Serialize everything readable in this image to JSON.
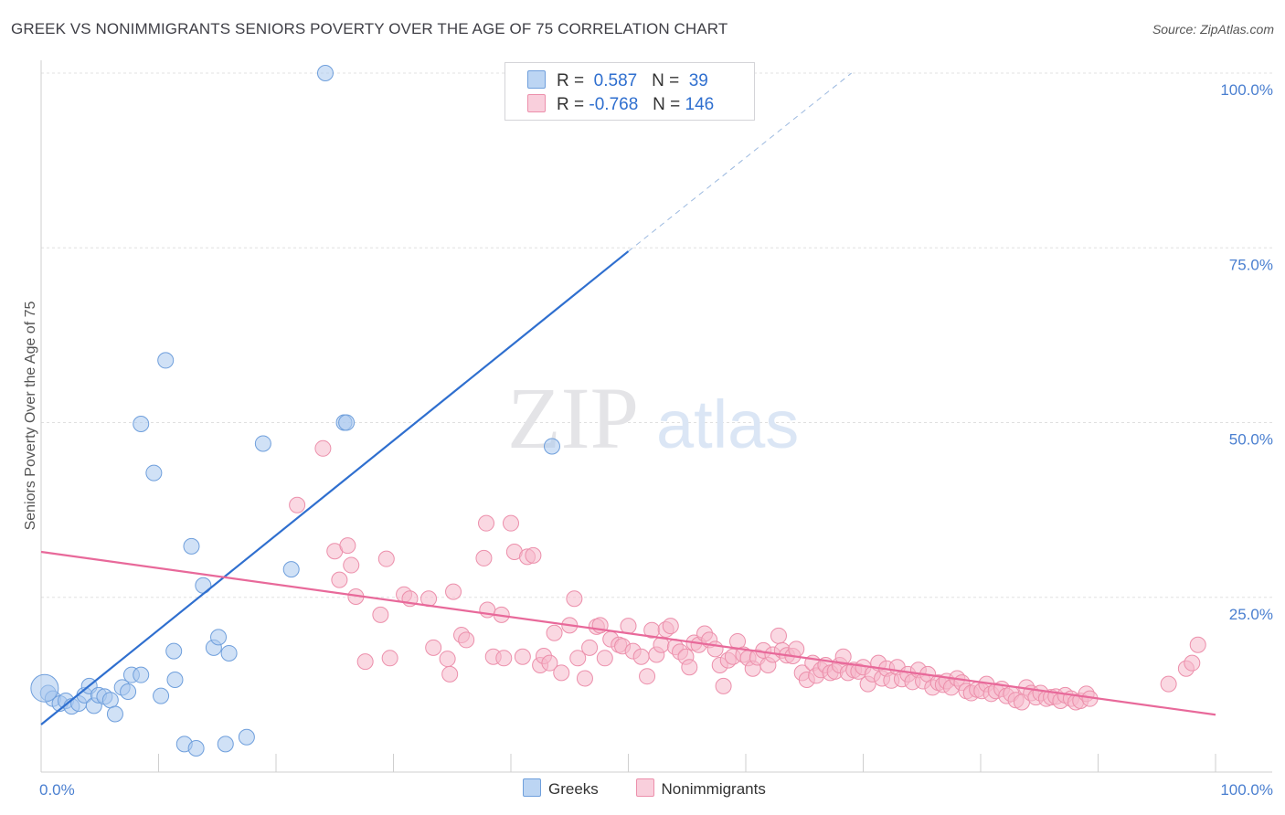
{
  "title": "GREEK VS NONIMMIGRANTS SENIORS POVERTY OVER THE AGE OF 75 CORRELATION CHART",
  "source": "Source: ZipAtlas.com",
  "watermark": {
    "zip": "ZIP",
    "atlas": "atlas"
  },
  "legend": {
    "r_label": "R =",
    "n_label": "N =",
    "greeks": {
      "r": "0.587",
      "n": "39"
    },
    "nonimmigrants": {
      "r": "-0.768",
      "n": "146"
    }
  },
  "colors": {
    "greeks_fill": "#a9c8ef",
    "greeks_stroke": "#6f9fdc",
    "greeks_line": "#2f6fcf",
    "non_fill": "#f6b8cb",
    "non_stroke": "#ec8fab",
    "non_line": "#e8699a"
  },
  "chart_data": {
    "type": "scatter",
    "xlabel": "",
    "ylabel": "Seniors Poverty Over the Age of 75",
    "xlim": [
      0,
      100
    ],
    "ylim": [
      0,
      100
    ],
    "x_tick_labels": [
      "0.0%",
      "100.0%"
    ],
    "y_tick_labels": [
      "100.0%",
      "75.0%",
      "50.0%",
      "25.0%"
    ],
    "y_tick_values": [
      100,
      75,
      50,
      25
    ],
    "grid": true,
    "legend_position": "top-center",
    "series": [
      {
        "name": "Greeks",
        "trend": {
          "x0": 0,
          "y0": 6.8,
          "x1": 50,
          "y1": 74.5,
          "x_dash_end": 69,
          "y_dash_end": 100
        },
        "points": [
          [
            0.6,
            11.3
          ],
          [
            1.0,
            10.5
          ],
          [
            1.6,
            9.8
          ],
          [
            2.1,
            10.2
          ],
          [
            2.6,
            9.4
          ],
          [
            3.2,
            9.8
          ],
          [
            3.7,
            11.0
          ],
          [
            4.1,
            12.3
          ],
          [
            4.5,
            9.5
          ],
          [
            4.9,
            11.0
          ],
          [
            5.4,
            10.8
          ],
          [
            5.9,
            10.3
          ],
          [
            6.3,
            8.3
          ],
          [
            6.9,
            12.1
          ],
          [
            7.4,
            11.5
          ],
          [
            7.7,
            13.9
          ],
          [
            8.5,
            13.9
          ],
          [
            8.5,
            49.8
          ],
          [
            9.6,
            42.8
          ],
          [
            10.2,
            10.9
          ],
          [
            10.6,
            58.9
          ],
          [
            11.3,
            17.3
          ],
          [
            11.4,
            13.2
          ],
          [
            12.2,
            4.0
          ],
          [
            12.8,
            32.3
          ],
          [
            13.2,
            3.4
          ],
          [
            13.8,
            26.7
          ],
          [
            14.7,
            17.8
          ],
          [
            15.1,
            19.3
          ],
          [
            15.7,
            4.0
          ],
          [
            16.0,
            17.0
          ],
          [
            17.5,
            5.0
          ],
          [
            18.9,
            47.0
          ],
          [
            21.3,
            29.0
          ],
          [
            24.2,
            100.0
          ],
          [
            25.8,
            50.0
          ],
          [
            26.0,
            50.0
          ],
          [
            43.5,
            46.6
          ],
          [
            0.3,
            12.0
          ]
        ]
      },
      {
        "name": "Nonimmigrants",
        "trend": {
          "x0": 0,
          "y0": 31.5,
          "x1": 100,
          "y1": 8.2
        },
        "points": [
          [
            21.8,
            38.2
          ],
          [
            24.0,
            46.3
          ],
          [
            25.0,
            31.6
          ],
          [
            25.4,
            27.5
          ],
          [
            26.1,
            32.4
          ],
          [
            26.4,
            29.6
          ],
          [
            26.8,
            25.1
          ],
          [
            27.6,
            15.8
          ],
          [
            28.9,
            22.5
          ],
          [
            29.4,
            30.5
          ],
          [
            29.7,
            16.3
          ],
          [
            30.9,
            25.4
          ],
          [
            31.4,
            24.8
          ],
          [
            33.0,
            24.8
          ],
          [
            33.4,
            17.8
          ],
          [
            34.6,
            16.2
          ],
          [
            34.8,
            14.0
          ],
          [
            35.1,
            25.8
          ],
          [
            35.8,
            19.6
          ],
          [
            36.2,
            18.9
          ],
          [
            37.7,
            30.6
          ],
          [
            37.9,
            35.6
          ],
          [
            38.0,
            23.2
          ],
          [
            38.5,
            16.5
          ],
          [
            39.2,
            22.5
          ],
          [
            39.4,
            16.3
          ],
          [
            40.0,
            35.6
          ],
          [
            40.3,
            31.5
          ],
          [
            41.0,
            16.5
          ],
          [
            41.4,
            30.8
          ],
          [
            41.9,
            31.0
          ],
          [
            42.5,
            15.3
          ],
          [
            42.8,
            16.6
          ],
          [
            43.3,
            15.6
          ],
          [
            43.7,
            19.9
          ],
          [
            44.3,
            14.2
          ],
          [
            45.0,
            21.0
          ],
          [
            45.4,
            24.8
          ],
          [
            45.7,
            16.3
          ],
          [
            46.3,
            13.4
          ],
          [
            46.7,
            17.8
          ],
          [
            47.3,
            20.8
          ],
          [
            47.6,
            21.0
          ],
          [
            48.0,
            16.3
          ],
          [
            48.5,
            19.0
          ],
          [
            49.2,
            18.2
          ],
          [
            49.5,
            18.0
          ],
          [
            50.0,
            20.9
          ],
          [
            50.4,
            17.3
          ],
          [
            51.1,
            16.5
          ],
          [
            51.6,
            13.7
          ],
          [
            52.0,
            20.3
          ],
          [
            52.4,
            16.8
          ],
          [
            52.8,
            18.2
          ],
          [
            53.2,
            20.4
          ],
          [
            53.6,
            20.9
          ],
          [
            54.0,
            17.9
          ],
          [
            54.4,
            17.2
          ],
          [
            54.9,
            16.5
          ],
          [
            55.2,
            15.0
          ],
          [
            55.6,
            18.5
          ],
          [
            56.0,
            18.2
          ],
          [
            56.5,
            19.8
          ],
          [
            56.9,
            18.9
          ],
          [
            57.4,
            17.6
          ],
          [
            57.8,
            15.3
          ],
          [
            58.1,
            12.3
          ],
          [
            58.5,
            16.0
          ],
          [
            58.9,
            16.5
          ],
          [
            59.3,
            18.7
          ],
          [
            59.8,
            16.8
          ],
          [
            60.2,
            16.3
          ],
          [
            60.6,
            14.8
          ],
          [
            61.0,
            16.4
          ],
          [
            61.5,
            17.4
          ],
          [
            61.9,
            15.3
          ],
          [
            62.3,
            16.8
          ],
          [
            62.8,
            19.5
          ],
          [
            63.1,
            17.4
          ],
          [
            63.5,
            16.7
          ],
          [
            64.0,
            16.6
          ],
          [
            64.3,
            17.6
          ],
          [
            64.8,
            14.2
          ],
          [
            65.2,
            13.2
          ],
          [
            65.7,
            15.6
          ],
          [
            66.0,
            13.8
          ],
          [
            66.4,
            14.6
          ],
          [
            66.8,
            15.3
          ],
          [
            67.2,
            14.2
          ],
          [
            67.6,
            14.4
          ],
          [
            68.0,
            15.3
          ],
          [
            68.3,
            16.5
          ],
          [
            68.7,
            14.2
          ],
          [
            69.2,
            14.6
          ],
          [
            69.6,
            14.4
          ],
          [
            70.0,
            15.0
          ],
          [
            70.4,
            12.6
          ],
          [
            70.8,
            14.0
          ],
          [
            71.3,
            15.6
          ],
          [
            71.6,
            13.4
          ],
          [
            72.0,
            14.8
          ],
          [
            72.4,
            13.1
          ],
          [
            72.9,
            15.0
          ],
          [
            73.3,
            13.3
          ],
          [
            73.8,
            14.0
          ],
          [
            74.2,
            12.9
          ],
          [
            74.7,
            14.6
          ],
          [
            75.1,
            13.0
          ],
          [
            75.5,
            14.0
          ],
          [
            75.9,
            12.1
          ],
          [
            76.4,
            12.8
          ],
          [
            76.8,
            12.5
          ],
          [
            77.1,
            13.0
          ],
          [
            77.5,
            12.1
          ],
          [
            78.0,
            13.4
          ],
          [
            78.4,
            12.8
          ],
          [
            78.8,
            11.6
          ],
          [
            79.2,
            11.3
          ],
          [
            79.7,
            11.8
          ],
          [
            80.1,
            11.6
          ],
          [
            80.5,
            12.6
          ],
          [
            80.9,
            11.2
          ],
          [
            81.3,
            11.6
          ],
          [
            81.8,
            11.9
          ],
          [
            82.2,
            10.9
          ],
          [
            82.6,
            11.2
          ],
          [
            83.0,
            10.3
          ],
          [
            83.5,
            10.0
          ],
          [
            83.9,
            12.1
          ],
          [
            84.3,
            11.3
          ],
          [
            84.7,
            10.7
          ],
          [
            85.1,
            11.3
          ],
          [
            85.6,
            10.5
          ],
          [
            86.0,
            10.7
          ],
          [
            86.4,
            10.8
          ],
          [
            86.8,
            10.2
          ],
          [
            87.2,
            11.0
          ],
          [
            87.7,
            10.5
          ],
          [
            88.1,
            10.0
          ],
          [
            88.5,
            10.2
          ],
          [
            89.0,
            11.2
          ],
          [
            89.3,
            10.5
          ],
          [
            96.0,
            12.6
          ],
          [
            97.5,
            14.8
          ],
          [
            98.0,
            15.6
          ],
          [
            98.5,
            18.2
          ]
        ]
      }
    ]
  },
  "bottom_legend": [
    "Greeks",
    "Nonimmigrants"
  ]
}
